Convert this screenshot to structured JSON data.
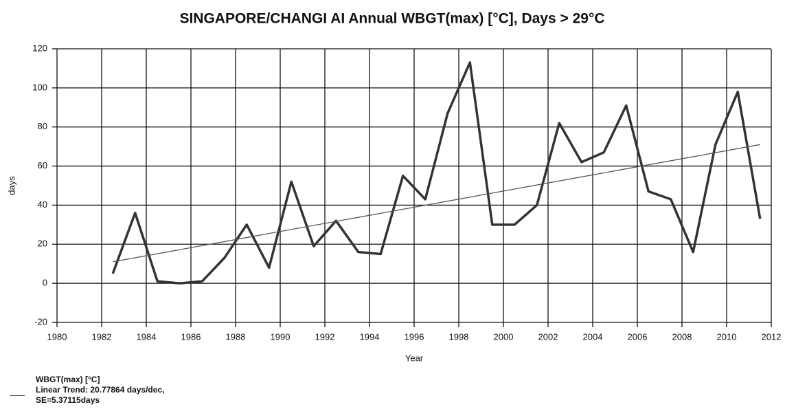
{
  "chart_data": {
    "type": "line",
    "title": "SINGAPORE/CHANGI AI Annual WBGT(max) [°C], Days > 29°C",
    "x_label": "Year",
    "y_label": "days",
    "xlim": [
      1980,
      2012
    ],
    "xticks": [
      1980,
      1982,
      1984,
      1986,
      1988,
      1990,
      1992,
      1994,
      1996,
      1998,
      2000,
      2002,
      2004,
      2006,
      2008,
      2010,
      2012
    ],
    "ylim": [
      -20,
      120
    ],
    "yticks": [
      -20,
      0,
      20,
      40,
      60,
      80,
      100,
      120
    ],
    "grid": true,
    "series": [
      {
        "name": "WBGT(max) [°C]",
        "color": "#333333",
        "x": [
          1982.5,
          1983.5,
          1984.5,
          1985.5,
          1986.5,
          1987.5,
          1988.5,
          1989.5,
          1990.5,
          1991.5,
          1992.5,
          1993.5,
          1994.5,
          1995.5,
          1996.5,
          1997.5,
          1998.5,
          1999.5,
          2000.5,
          2001.5,
          2002.5,
          2003.5,
          2004.5,
          2005.5,
          2006.5,
          2007.5,
          2008.5,
          2009.5,
          2010.5,
          2011.5
        ],
        "values": [
          5,
          36,
          1,
          0,
          1,
          13,
          30,
          8,
          52,
          19,
          32,
          16,
          15,
          55,
          43,
          87,
          113,
          30,
          30,
          40,
          82,
          62,
          67,
          91,
          47,
          43,
          16,
          71,
          98,
          33
        ]
      },
      {
        "name": "Linear Trend: 20.77864 days/dec, SE=5.37115days",
        "color": "#555555",
        "x": [
          1982.5,
          2011.5
        ],
        "values": [
          11,
          71
        ]
      }
    ]
  }
}
